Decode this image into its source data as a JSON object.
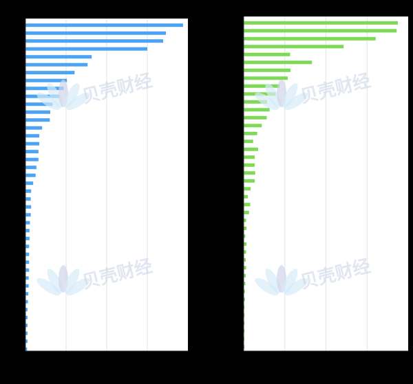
{
  "watermark": "贝壳财经",
  "chart_data": [
    {
      "type": "bar",
      "orientation": "horizontal",
      "color": "#4aa3f5",
      "grid": true,
      "xlim": [
        0,
        4
      ],
      "values": [
        3.88,
        3.46,
        3.39,
        3.0,
        1.63,
        1.53,
        1.21,
        1.02,
        0.94,
        0.84,
        0.67,
        0.61,
        0.6,
        0.41,
        0.34,
        0.34,
        0.32,
        0.32,
        0.27,
        0.25,
        0.19,
        0.14,
        0.13,
        0.14,
        0.13,
        0.11,
        0.1,
        0.1,
        0.09,
        0.09,
        0.09,
        0.09,
        0.08,
        0.08,
        0.07,
        0.06,
        0.05,
        0.05,
        0.05,
        0.05,
        0.05,
        0.04
      ]
    },
    {
      "type": "bar",
      "orientation": "horizontal",
      "color": "#7ed957",
      "grid": true,
      "xlim": [
        0,
        4
      ],
      "values": [
        3.75,
        3.72,
        3.21,
        2.43,
        1.13,
        1.66,
        1.14,
        1.07,
        0.87,
        0.78,
        0.57,
        0.63,
        0.56,
        0.44,
        0.33,
        0.23,
        0.35,
        0.27,
        0.27,
        0.28,
        0.27,
        0.17,
        0.1,
        0.16,
        0.13,
        0.06,
        0.07,
        0.04,
        0.07,
        0.06,
        0.05,
        0.06,
        0.05,
        0.04,
        0.03,
        0.03,
        0.02,
        0.02,
        0.02,
        0.02,
        0.01,
        0.02
      ]
    }
  ]
}
